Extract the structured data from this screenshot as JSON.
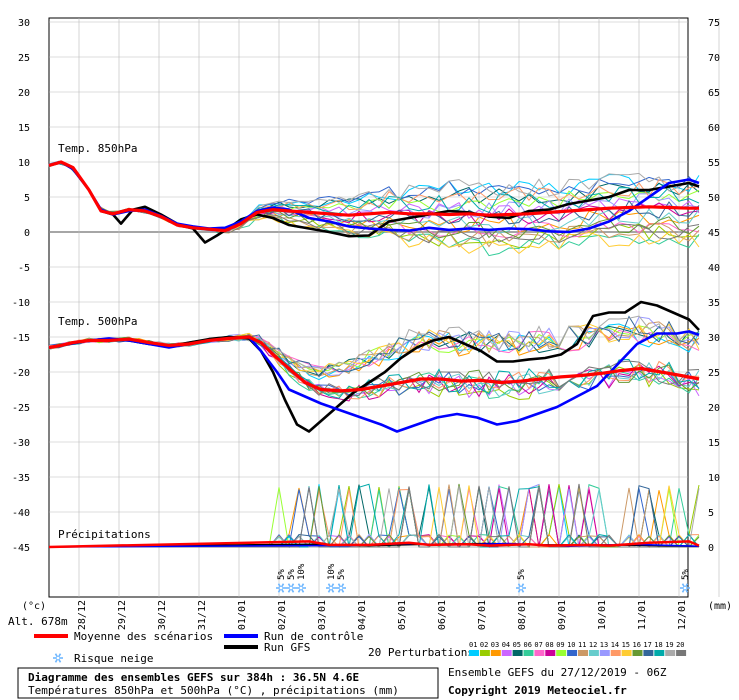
{
  "chart_data": {
    "type": "line",
    "panel_labels": {
      "t850": "Temp. 850hPa",
      "t500": "Temp. 500hPa",
      "precip": "Précipitations"
    },
    "left_axis": {
      "unit": "(°c)",
      "ticks": [
        30,
        25,
        20,
        15,
        10,
        5,
        0,
        -5,
        -10,
        -15,
        -20,
        -25,
        -30,
        -35,
        -40,
        -45
      ]
    },
    "right_axis": {
      "unit": "(mm)",
      "ticks": [
        75,
        70,
        65,
        60,
        55,
        50,
        45,
        40,
        35,
        30,
        25,
        20,
        15,
        10,
        5,
        0
      ]
    },
    "x_labels": [
      "28/12",
      "29/12",
      "30/12",
      "31/12",
      "01/01",
      "02/01",
      "03/01",
      "04/01",
      "05/01",
      "06/01",
      "07/01",
      "08/01",
      "09/01",
      "10/01",
      "11/01",
      "12/01"
    ],
    "altitude": "Alt. 678m",
    "snow_risk": [
      {
        "day": 5.8,
        "pct": "5%"
      },
      {
        "day": 6.05,
        "pct": "5%"
      },
      {
        "day": 6.3,
        "pct": "10%"
      },
      {
        "day": 7.05,
        "pct": "10%"
      },
      {
        "day": 7.3,
        "pct": "5%"
      },
      {
        "day": 11.8,
        "pct": "5%"
      },
      {
        "day": 15.9,
        "pct": "5%"
      }
    ],
    "series": [
      {
        "name": "Moyenne des scénarios",
        "color": "#ff0000",
        "t850": [
          [
            0,
            9.5
          ],
          [
            0.3,
            10
          ],
          [
            0.6,
            9.2
          ],
          [
            1,
            6
          ],
          [
            1.3,
            3
          ],
          [
            1.6,
            2.6
          ],
          [
            2,
            3.2
          ],
          [
            2.4,
            3
          ],
          [
            2.8,
            2.2
          ],
          [
            3.2,
            1
          ],
          [
            3.6,
            0.6
          ],
          [
            4,
            0.4
          ],
          [
            4.4,
            0.2
          ],
          [
            4.8,
            1.2
          ],
          [
            5.2,
            2.8
          ],
          [
            5.6,
            3.2
          ],
          [
            6,
            3
          ],
          [
            6.5,
            2.8
          ],
          [
            7,
            2.6
          ],
          [
            7.5,
            2.4
          ],
          [
            8,
            2.6
          ],
          [
            8.5,
            2.8
          ],
          [
            9,
            2.6
          ],
          [
            9.5,
            2.6
          ],
          [
            10,
            2.5
          ],
          [
            10.5,
            2.6
          ],
          [
            11,
            2.4
          ],
          [
            11.5,
            2.5
          ],
          [
            12,
            2.6
          ],
          [
            12.5,
            2.8
          ],
          [
            13,
            3
          ],
          [
            13.5,
            3.2
          ],
          [
            14,
            3.4
          ],
          [
            14.5,
            3.5
          ],
          [
            15,
            3.6
          ],
          [
            15.5,
            3.5
          ],
          [
            16,
            3.4
          ],
          [
            16.25,
            3.4
          ]
        ],
        "t500": [
          [
            0,
            -16.5
          ],
          [
            0.3,
            -16.2
          ],
          [
            0.6,
            -15.8
          ],
          [
            1,
            -15.5
          ],
          [
            1.5,
            -15.5
          ],
          [
            2,
            -15.3
          ],
          [
            2.5,
            -15.8
          ],
          [
            3,
            -16.2
          ],
          [
            3.5,
            -16.0
          ],
          [
            4,
            -15.5
          ],
          [
            4.5,
            -15.2
          ],
          [
            5,
            -15
          ],
          [
            5.3,
            -15.8
          ],
          [
            5.6,
            -17.5
          ],
          [
            6,
            -19.5
          ],
          [
            6.4,
            -21.5
          ],
          [
            6.8,
            -22.5
          ],
          [
            7.3,
            -22.7
          ],
          [
            7.8,
            -22.5
          ],
          [
            8.3,
            -22
          ],
          [
            8.8,
            -21.5
          ],
          [
            9.3,
            -21
          ],
          [
            9.8,
            -21
          ],
          [
            10.3,
            -21.3
          ],
          [
            10.8,
            -21.2
          ],
          [
            11.3,
            -21.5
          ],
          [
            11.8,
            -21.3
          ],
          [
            12.3,
            -21
          ],
          [
            12.8,
            -20.7
          ],
          [
            13.3,
            -20.5
          ],
          [
            13.8,
            -20.2
          ],
          [
            14.3,
            -19.8
          ],
          [
            14.8,
            -19.5
          ],
          [
            15.3,
            -20
          ],
          [
            15.8,
            -20.5
          ],
          [
            16.25,
            -21
          ]
        ],
        "precip": [
          [
            0,
            0
          ],
          [
            6.5,
            0.8
          ],
          [
            7,
            0.3
          ],
          [
            8,
            0.3
          ],
          [
            9,
            0.6
          ],
          [
            9.5,
            0.3
          ],
          [
            10.5,
            0.4
          ],
          [
            11,
            0.2
          ],
          [
            12,
            0.4
          ],
          [
            12.5,
            0.2
          ],
          [
            13.5,
            0.3
          ],
          [
            14,
            0.2
          ],
          [
            15,
            0.6
          ],
          [
            16,
            0.8
          ],
          [
            16.25,
            0.2
          ]
        ]
      },
      {
        "name": "Run de contrôle",
        "color": "#0000ff",
        "t850": [
          [
            0,
            9.5
          ],
          [
            0.3,
            10
          ],
          [
            0.6,
            9
          ],
          [
            1,
            6
          ],
          [
            1.3,
            3.2
          ],
          [
            1.6,
            2.5
          ],
          [
            2,
            3
          ],
          [
            2.4,
            3.2
          ],
          [
            2.8,
            2.3
          ],
          [
            3.2,
            1.2
          ],
          [
            3.6,
            0.8
          ],
          [
            4,
            0.5
          ],
          [
            4.4,
            0.6
          ],
          [
            4.8,
            1.5
          ],
          [
            5.2,
            3
          ],
          [
            5.6,
            3.5
          ],
          [
            6,
            3.2
          ],
          [
            6.5,
            2
          ],
          [
            7,
            1.5
          ],
          [
            7.5,
            0.8
          ],
          [
            8,
            0.5
          ],
          [
            8.5,
            0.3
          ],
          [
            9,
            0.2
          ],
          [
            9.5,
            0.6
          ],
          [
            10,
            0.3
          ],
          [
            10.5,
            0.5
          ],
          [
            11,
            0.3
          ],
          [
            11.5,
            0.5
          ],
          [
            12,
            0.4
          ],
          [
            12.5,
            0.1
          ],
          [
            13,
            0
          ],
          [
            13.5,
            0.5
          ],
          [
            14,
            1.5
          ],
          [
            14.5,
            3
          ],
          [
            15,
            5
          ],
          [
            15.5,
            7
          ],
          [
            16,
            7.5
          ],
          [
            16.25,
            7
          ]
        ],
        "t500": [
          [
            0,
            -16.5
          ],
          [
            0.5,
            -16
          ],
          [
            1,
            -15.5
          ],
          [
            1.5,
            -15.2
          ],
          [
            2,
            -15.5
          ],
          [
            2.5,
            -16
          ],
          [
            3,
            -16.5
          ],
          [
            3.5,
            -16
          ],
          [
            4,
            -15.5
          ],
          [
            4.5,
            -15.2
          ],
          [
            5,
            -15
          ],
          [
            5.3,
            -17
          ],
          [
            5.7,
            -20
          ],
          [
            6,
            -22.5
          ],
          [
            6.4,
            -23.5
          ],
          [
            6.8,
            -24.5
          ],
          [
            7.3,
            -25.5
          ],
          [
            7.8,
            -26.5
          ],
          [
            8.3,
            -27.5
          ],
          [
            8.7,
            -28.5
          ],
          [
            9.2,
            -27.5
          ],
          [
            9.7,
            -26.5
          ],
          [
            10.2,
            -26
          ],
          [
            10.7,
            -26.5
          ],
          [
            11.2,
            -27.5
          ],
          [
            11.7,
            -27
          ],
          [
            12.2,
            -26
          ],
          [
            12.7,
            -25
          ],
          [
            13.2,
            -23.5
          ],
          [
            13.7,
            -22
          ],
          [
            14.2,
            -19
          ],
          [
            14.7,
            -16
          ],
          [
            15.2,
            -14.5
          ],
          [
            15.7,
            -14.5
          ],
          [
            16,
            -14.2
          ],
          [
            16.25,
            -14.7
          ]
        ],
        "precip": [
          [
            0,
            0
          ],
          [
            6.5,
            0.2
          ],
          [
            7.5,
            0.2
          ],
          [
            9,
            0.5
          ],
          [
            10,
            0.3
          ],
          [
            11.5,
            0.5
          ],
          [
            13,
            0.1
          ],
          [
            14.5,
            0.4
          ],
          [
            16.25,
            0.1
          ]
        ]
      },
      {
        "name": "Run GFS",
        "color": "#000000",
        "t850": [
          [
            0,
            9.5
          ],
          [
            0.3,
            10
          ],
          [
            0.6,
            9
          ],
          [
            1,
            6
          ],
          [
            1.3,
            3
          ],
          [
            1.6,
            2.5
          ],
          [
            1.8,
            1.2
          ],
          [
            2.1,
            3.2
          ],
          [
            2.4,
            3.6
          ],
          [
            2.8,
            2.5
          ],
          [
            3.2,
            1.2
          ],
          [
            3.6,
            0.5
          ],
          [
            3.9,
            -1.5
          ],
          [
            4.2,
            -0.5
          ],
          [
            4.5,
            0.6
          ],
          [
            4.8,
            1.8
          ],
          [
            5.2,
            2.5
          ],
          [
            5.6,
            2
          ],
          [
            6,
            1
          ],
          [
            6.5,
            0.5
          ],
          [
            7,
            0
          ],
          [
            7.5,
            -0.6
          ],
          [
            8,
            -0.5
          ],
          [
            8.5,
            1.5
          ],
          [
            9,
            2
          ],
          [
            9.5,
            2.5
          ],
          [
            10,
            3
          ],
          [
            10.5,
            2.8
          ],
          [
            11,
            2.2
          ],
          [
            11.5,
            2
          ],
          [
            12,
            3
          ],
          [
            12.5,
            3.2
          ],
          [
            13,
            4
          ],
          [
            13.5,
            4.5
          ],
          [
            14,
            5
          ],
          [
            14.5,
            6
          ],
          [
            15,
            6
          ],
          [
            15.5,
            6.5
          ],
          [
            16,
            7
          ],
          [
            16.25,
            6.5
          ]
        ],
        "t500": [
          [
            0,
            -16.5
          ],
          [
            0.5,
            -16
          ],
          [
            1,
            -15.5
          ],
          [
            1.5,
            -15.3
          ],
          [
            2,
            -15.5
          ],
          [
            2.5,
            -16
          ],
          [
            3,
            -16.3
          ],
          [
            3.5,
            -15.8
          ],
          [
            4,
            -15.3
          ],
          [
            4.5,
            -15
          ],
          [
            5,
            -15.2
          ],
          [
            5.3,
            -17
          ],
          [
            5.6,
            -20
          ],
          [
            5.9,
            -24
          ],
          [
            6.2,
            -27.5
          ],
          [
            6.5,
            -28.5
          ],
          [
            6.8,
            -27
          ],
          [
            7.2,
            -25
          ],
          [
            7.6,
            -23
          ],
          [
            8,
            -21.5
          ],
          [
            8.4,
            -20
          ],
          [
            8.8,
            -18
          ],
          [
            9.2,
            -16.5
          ],
          [
            9.6,
            -15.5
          ],
          [
            10,
            -15
          ],
          [
            10.4,
            -16
          ],
          [
            10.8,
            -17
          ],
          [
            11.2,
            -18.5
          ],
          [
            11.6,
            -18.5
          ],
          [
            12,
            -18.2
          ],
          [
            12.4,
            -18
          ],
          [
            12.8,
            -17.5
          ],
          [
            13.2,
            -16
          ],
          [
            13.6,
            -12
          ],
          [
            14,
            -11.5
          ],
          [
            14.4,
            -11.5
          ],
          [
            14.8,
            -10
          ],
          [
            15.2,
            -10.5
          ],
          [
            15.6,
            -11.5
          ],
          [
            16,
            -12.5
          ],
          [
            16.25,
            -14
          ]
        ],
        "precip": [
          [
            0,
            0
          ],
          [
            6.5,
            0.4
          ],
          [
            8,
            0.2
          ],
          [
            9.5,
            0.4
          ],
          [
            11,
            0.5
          ],
          [
            12.5,
            0.3
          ],
          [
            14,
            0.3
          ],
          [
            16.25,
            0.1
          ]
        ]
      }
    ]
  },
  "legend": {
    "mean_label": "Moyenne des scénarios",
    "control_label": "Run de contrôle",
    "gfs_label": "Run GFS",
    "snow_label": "Risque neige",
    "perturb_label": "20 Perturbations",
    "perturb_ids": [
      "01",
      "02",
      "03",
      "04",
      "05",
      "06",
      "07",
      "08",
      "09",
      "10",
      "11",
      "12",
      "13",
      "14",
      "15",
      "16",
      "17",
      "18",
      "19",
      "20"
    ],
    "perturb_colors": [
      "#00ccff",
      "#99cc00",
      "#ff9900",
      "#cc66ff",
      "#006666",
      "#33cc99",
      "#ff66cc",
      "#cc0099",
      "#99ff33",
      "#3366cc",
      "#cc9966",
      "#66cccc",
      "#9999ff",
      "#ff9966",
      "#ffcc33",
      "#669933",
      "#336699",
      "#00aaaa",
      "#aaaaaa",
      "#777777"
    ]
  },
  "footer": {
    "title": "Diagramme des ensembles GEFS sur 384h : 36.5N 4.6E",
    "subtitle": "Températures 850hPa et 500hPa (°C) , précipitations (mm)",
    "run_info": "Ensemble GEFS du 27/12/2019 - 06Z",
    "copyright": "Copyright 2019 Meteociel.fr"
  }
}
